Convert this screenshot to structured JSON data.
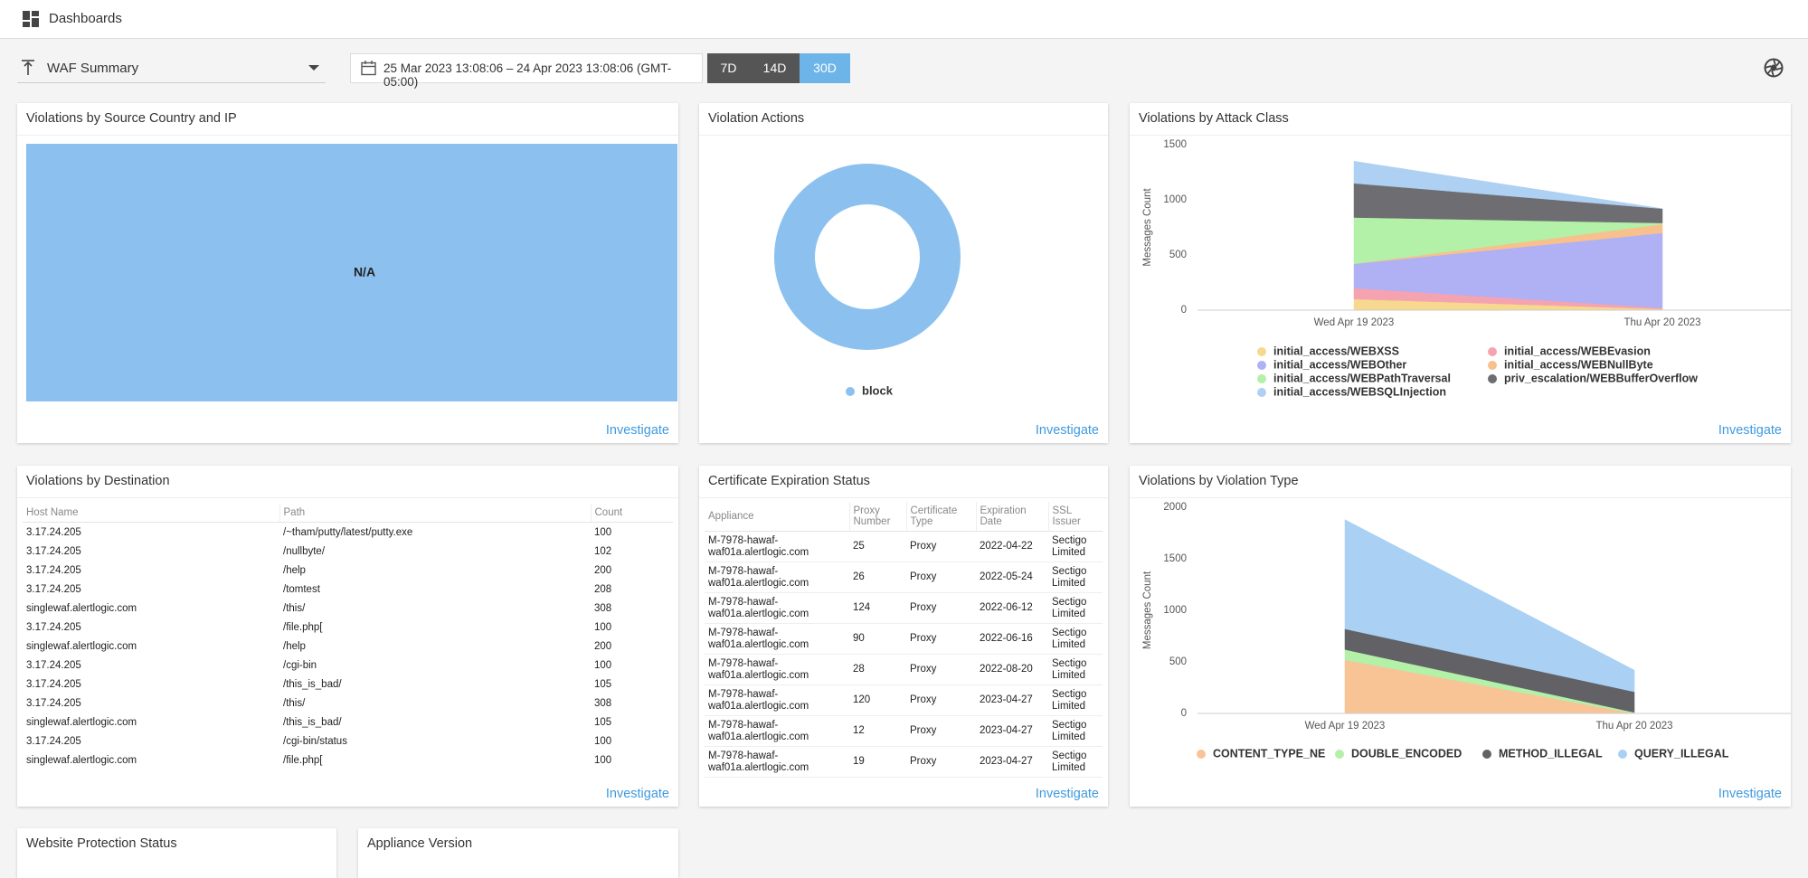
{
  "header": {
    "title": "Dashboards"
  },
  "toolbar": {
    "dashboard": "WAF Summary",
    "date_range": "25 Mar 2023 13:08:06 – 24 Apr 2023 13:08:06 (GMT-05:00)",
    "ranges": [
      "7D",
      "14D",
      "30D"
    ],
    "active_range": "30D"
  },
  "panels": {
    "source_country": {
      "title": "Violations by Source Country and IP",
      "placeholder": "N/A",
      "link": "Investigate"
    },
    "destination": {
      "title": "Violations by Destination",
      "link": "Investigate",
      "columns": [
        "Host Name",
        "Path",
        "Count"
      ],
      "rows": [
        [
          "3.17.24.205",
          "/~tham/putty/latest/putty.exe",
          100
        ],
        [
          "3.17.24.205",
          "/nullbyte/",
          102
        ],
        [
          "3.17.24.205",
          "/help",
          200
        ],
        [
          "3.17.24.205",
          "/tomtest",
          208
        ],
        [
          "singlewaf.alertlogic.com",
          "/this/",
          308
        ],
        [
          "3.17.24.205",
          "/file.php[",
          100
        ],
        [
          "singlewaf.alertlogic.com",
          "/help",
          200
        ],
        [
          "3.17.24.205",
          "/cgi-bin",
          100
        ],
        [
          "3.17.24.205",
          "/this_is_bad/",
          105
        ],
        [
          "3.17.24.205",
          "/this/",
          308
        ],
        [
          "singlewaf.alertlogic.com",
          "/this_is_bad/",
          105
        ],
        [
          "3.17.24.205",
          "/cgi-bin/status",
          100
        ],
        [
          "singlewaf.alertlogic.com",
          "/file.php[",
          100
        ]
      ]
    },
    "certificates": {
      "title": "Certificate Expiration Status",
      "link": "Investigate",
      "columns": [
        "Appliance",
        "Proxy Number",
        "Certificate Type",
        "Expiration Date",
        "SSL Issuer"
      ],
      "rows": [
        [
          "M-7978-hawaf-waf01a.alertlogic.com",
          25,
          "Proxy",
          "2022-04-22",
          "Sectigo Limited"
        ],
        [
          "M-7978-hawaf-waf01a.alertlogic.com",
          26,
          "Proxy",
          "2022-05-24",
          "Sectigo Limited"
        ],
        [
          "M-7978-hawaf-waf01a.alertlogic.com",
          124,
          "Proxy",
          "2022-06-12",
          "Sectigo Limited"
        ],
        [
          "M-7978-hawaf-waf01a.alertlogic.com",
          90,
          "Proxy",
          "2022-06-16",
          "Sectigo Limited"
        ],
        [
          "M-7978-hawaf-waf01a.alertlogic.com",
          28,
          "Proxy",
          "2022-08-20",
          "Sectigo Limited"
        ],
        [
          "M-7978-hawaf-waf01a.alertlogic.com",
          120,
          "Proxy",
          "2023-04-27",
          "Sectigo Limited"
        ],
        [
          "M-7978-hawaf-waf01a.alertlogic.com",
          12,
          "Proxy",
          "2023-04-27",
          "Sectigo Limited"
        ],
        [
          "M-7978-hawaf-waf01a.alertlogic.com",
          19,
          "Proxy",
          "2023-04-27",
          "Sectigo Limited"
        ]
      ]
    },
    "website_protection": {
      "title": "Website Protection Status"
    },
    "appliance_version": {
      "title": "Appliance Version"
    }
  },
  "chart_data": [
    {
      "type": "donut",
      "title": "Violation Actions",
      "link": "Investigate",
      "categories": [
        "block"
      ],
      "values": [
        100
      ],
      "colors": [
        "#8cc1ef"
      ]
    },
    {
      "type": "area",
      "title": "Violations by Attack Class",
      "link": "Investigate",
      "stacked": true,
      "grid": false,
      "ylabel": "Messages Count",
      "categories": [
        "Wed Apr 19 2023",
        "Thu Apr 20 2023"
      ],
      "ylim": [
        0,
        1500
      ],
      "yticks": [
        0,
        500,
        1000,
        1500
      ],
      "series": [
        {
          "name": "initial_access/WEBXSS",
          "color": "#f6d98e",
          "values": [
            100,
            10
          ]
        },
        {
          "name": "initial_access/WEBEvasion",
          "color": "#f5a3b0",
          "values": [
            100,
            10
          ]
        },
        {
          "name": "initial_access/WEBOther",
          "color": "#b0b0f5",
          "values": [
            220,
            680
          ]
        },
        {
          "name": "initial_access/WEBNullByte",
          "color": "#f8c08c",
          "values": [
            0,
            80
          ]
        },
        {
          "name": "initial_access/WEBPathTraversal",
          "color": "#b3f0a8",
          "values": [
            420,
            10
          ]
        },
        {
          "name": "priv_escalation/WEBBufferOverflow",
          "color": "#6e6e72",
          "values": [
            310,
            130
          ]
        },
        {
          "name": "initial_access/WEBSQLInjection",
          "color": "#aed0f2",
          "values": [
            200,
            0
          ]
        }
      ]
    },
    {
      "type": "area",
      "title": "Violations by Violation Type",
      "link": "Investigate",
      "stacked": true,
      "grid": false,
      "ylabel": "Messages Count",
      "categories": [
        "Wed Apr 19 2023",
        "Thu Apr 20 2023"
      ],
      "ylim": [
        0,
        2000
      ],
      "yticks": [
        0,
        500,
        1000,
        1500,
        2000
      ],
      "series": [
        {
          "name": "CONTENT_TYPE_NE",
          "color": "#f8c496",
          "values": [
            520,
            0
          ]
        },
        {
          "name": "DOUBLE_ENCODED",
          "color": "#b3f0a8",
          "values": [
            100,
            10
          ]
        },
        {
          "name": "METHOD_ILLEGAL",
          "color": "#626266",
          "values": [
            200,
            200
          ]
        },
        {
          "name": "QUERY_ILLEGAL",
          "color": "#aad0f4",
          "values": [
            1060,
            210
          ]
        }
      ]
    }
  ]
}
